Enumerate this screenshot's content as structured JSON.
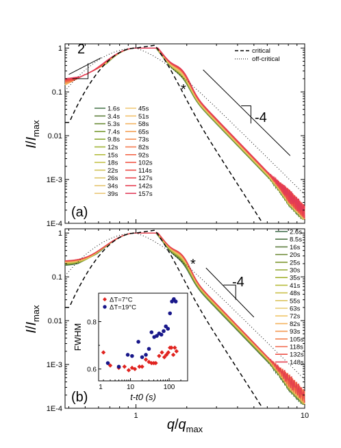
{
  "chart_data": [
    {
      "type": "line",
      "panel_label": "(a)",
      "xlabel": "q/q_max",
      "ylabel": "I/I_max",
      "xscale": "log",
      "yscale": "log",
      "xlim": [
        0.38,
        10
      ],
      "ylim": [
        0.0001,
        1.25
      ],
      "y_tick_labels": [
        "1E-4",
        "1E-3",
        "0.01",
        "0.1",
        "1"
      ],
      "x_tick_labels": [
        "1",
        "10"
      ],
      "annotations": {
        "slope_low": "2",
        "slope_high": "-4",
        "shoulder_mark": "*"
      },
      "reference_curves": [
        {
          "name": "critical",
          "style": "dashed"
        },
        {
          "name": "off-critical",
          "style": "dotted"
        }
      ],
      "series_labels": [
        "1.6s",
        "3.4s",
        "5.3s",
        "7.4s",
        "9.8s",
        "12s",
        "15s",
        "18s",
        "22s",
        "26s",
        "34s",
        "39s",
        "45s",
        "51s",
        "58s",
        "65s",
        "73s",
        "82s",
        "92s",
        "102s",
        "114s",
        "127s",
        "142s",
        "157s"
      ],
      "series_colors": [
        "#4e7a52",
        "#5f7f3c",
        "#6a8b35",
        "#7a9a33",
        "#8aa731",
        "#a0b332",
        "#b3bc3c",
        "#c4c24a",
        "#d2c35a",
        "#dcc466",
        "#e4c36c",
        "#eac573",
        "#f0c978",
        "#f2c06a",
        "#f3b35f",
        "#f4a157",
        "#f48c50",
        "#f4784b",
        "#f36548",
        "#f05545",
        "#ec4a45",
        "#e94249",
        "#e63d50",
        "#e13a58"
      ]
    },
    {
      "type": "line",
      "panel_label": "(b)",
      "xlabel": "q/q_max",
      "ylabel": "I/I_max",
      "xscale": "log",
      "yscale": "log",
      "xlim": [
        0.38,
        10
      ],
      "ylim": [
        0.0001,
        1.25
      ],
      "y_tick_labels": [
        "1E-4",
        "1E-3",
        "0.01",
        "0.1",
        "1"
      ],
      "x_tick_labels": [
        "1",
        "10"
      ],
      "annotations": {
        "slope_high": "-4",
        "shoulder_mark": "*"
      },
      "series_labels": [
        "2.6s",
        "8.5s",
        "16s",
        "20s",
        "25s",
        "30s",
        "35s",
        "41s",
        "48s",
        "55s",
        "63s",
        "72s",
        "82s",
        "93s",
        "105s",
        "118s",
        "132s",
        "148s"
      ],
      "series_colors": [
        "#3d6a48",
        "#4d7445",
        "#5d7e3f",
        "#6e8a37",
        "#7e9832",
        "#8fa530",
        "#a3b233",
        "#b8bb3d",
        "#cbc04c",
        "#dac35c",
        "#e6c86b",
        "#f0c568",
        "#f4b35e",
        "#f49a54",
        "#f3804d",
        "#f06748",
        "#ec5246",
        "#e43f4e"
      ]
    },
    {
      "type": "scatter",
      "panel_label": "inset",
      "xlabel": "t-t0 (s)",
      "ylabel": "FWHM",
      "xscale": "log",
      "xlim": [
        1.5,
        300
      ],
      "ylim": [
        0.55,
        0.92
      ],
      "y_tick_labels": [
        "0.6",
        "0.8"
      ],
      "x_tick_labels": [
        "1",
        "10",
        "100"
      ],
      "series": [
        {
          "name": "ΔT=7°C",
          "marker": "diamond",
          "color": "#e0231f",
          "points": [
            [
              2,
              0.67
            ],
            [
              3,
              0.615
            ],
            [
              5,
              0.605
            ],
            [
              7,
              0.61
            ],
            [
              9,
              0.595
            ],
            [
              11,
              0.605
            ],
            [
              13,
              0.6
            ],
            [
              17,
              0.61
            ],
            [
              20,
              0.61
            ],
            [
              25,
              0.64
            ],
            [
              30,
              0.63
            ],
            [
              35,
              0.625
            ],
            [
              40,
              0.625
            ],
            [
              45,
              0.625
            ],
            [
              55,
              0.655
            ],
            [
              65,
              0.67
            ],
            [
              75,
              0.65
            ],
            [
              85,
              0.66
            ],
            [
              95,
              0.67
            ],
            [
              105,
              0.69
            ],
            [
              115,
              0.69
            ],
            [
              128,
              0.66
            ],
            [
              140,
              0.69
            ],
            [
              155,
              0.675
            ]
          ]
        },
        {
          "name": "ΔT=19°C",
          "marker": "circle",
          "color": "#18178a",
          "points": [
            [
              2.6,
              0.625
            ],
            [
              5,
              0.61
            ],
            [
              8.5,
              0.66
            ],
            [
              11,
              0.655
            ],
            [
              16,
              0.715
            ],
            [
              20,
              0.65
            ],
            [
              25,
              0.66
            ],
            [
              30,
              0.685
            ],
            [
              35,
              0.755
            ],
            [
              41,
              0.735
            ],
            [
              48,
              0.74
            ],
            [
              55,
              0.75
            ],
            [
              63,
              0.745
            ],
            [
              72,
              0.76
            ],
            [
              82,
              0.78
            ],
            [
              93,
              0.77
            ],
            [
              105,
              0.835
            ],
            [
              118,
              0.885
            ],
            [
              132,
              0.895
            ],
            [
              148,
              0.885
            ]
          ]
        }
      ]
    }
  ]
}
